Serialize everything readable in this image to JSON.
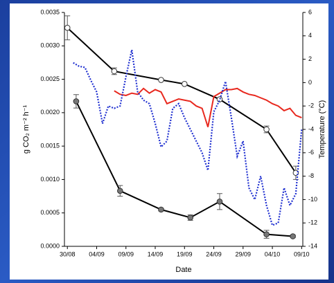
{
  "chart_data": {
    "type": "line",
    "xlabel": "Date",
    "ylabel": "g CO₂ m⁻² h⁻¹",
    "y2label": "Temperature (°C)",
    "xlim": [
      -0.5,
      40.2
    ],
    "xticks": [
      {
        "value": 0,
        "label": "30/08"
      },
      {
        "value": 5,
        "label": "04/09"
      },
      {
        "value": 10,
        "label": "09/09"
      },
      {
        "value": 15,
        "label": "14/09"
      },
      {
        "value": 20,
        "label": "19/09"
      },
      {
        "value": 25,
        "label": "24/09"
      },
      {
        "value": 30,
        "label": "29/09"
      },
      {
        "value": 35,
        "label": "04/10"
      },
      {
        "value": 40,
        "label": "09/10"
      }
    ],
    "ylim": [
      0,
      0.0035
    ],
    "yticks": [
      {
        "value": 0,
        "label": "0.0000"
      },
      0.0005,
      {
        "value": 0.001,
        "label": "0.0010"
      },
      0.0015,
      {
        "value": 0.002,
        "label": "0.0020"
      },
      0.0025,
      {
        "value": 0.003,
        "label": "0.0030"
      },
      0.0035
    ],
    "y2lim": [
      -14,
      6
    ],
    "y2ticks": [
      -14,
      -12,
      -10,
      -8,
      -6,
      -4,
      -2,
      0,
      2,
      4,
      6
    ],
    "series": [
      {
        "color": "#000000",
        "marker": "open",
        "style": "solid",
        "x": [
          0,
          8,
          16,
          20,
          26,
          34,
          39
        ],
        "values": [
          0.00327,
          0.00262,
          0.00249,
          0.00243,
          0.0022,
          0.00175,
          0.0011
        ],
        "errors": [
          0.00018,
          5e-05,
          0,
          0,
          0,
          5e-05,
          0.0001
        ]
      },
      {
        "color": "#000000",
        "marker": "filled",
        "style": "solid",
        "x": [
          1.5,
          9,
          16,
          21,
          26,
          34,
          38.5
        ],
        "values": [
          0.00217,
          0.00083,
          0.00055,
          0.00043,
          0.00067,
          0.00018,
          0.00015
        ],
        "errors": [
          0.0001,
          8e-05,
          2e-05,
          4e-05,
          0.00012,
          6e-05,
          2e-05
        ]
      },
      {
        "color": "#e8281e",
        "marker": "none",
        "style": "solid",
        "axis": "y2",
        "x": [
          8,
          9,
          10,
          11,
          12,
          13,
          14,
          15,
          16,
          17,
          18,
          19,
          20,
          21,
          22,
          23,
          24,
          25,
          26,
          27,
          28,
          29,
          30,
          31,
          32,
          33,
          34,
          35,
          36,
          37,
          38,
          39,
          40
        ],
        "values": [
          -0.7,
          -1.0,
          -1.1,
          -0.9,
          -1.0,
          -0.5,
          -0.9,
          -0.6,
          -0.8,
          -1.8,
          -1.6,
          -1.4,
          -1.5,
          -1.6,
          -2.0,
          -2.2,
          -3.8,
          -1.2,
          -0.9,
          -0.6,
          -0.6,
          -0.5,
          -0.8,
          -1.0,
          -1.1,
          -1.3,
          -1.5,
          -1.8,
          -2.0,
          -2.4,
          -2.2,
          -2.8,
          -3.0
        ]
      },
      {
        "color": "#1f2fd0",
        "marker": "none",
        "style": "dotted",
        "axis": "y2",
        "x": [
          1,
          2,
          3,
          4,
          5,
          6,
          7,
          8,
          9,
          10,
          11,
          12,
          13,
          14,
          15,
          16,
          17,
          18,
          19,
          20,
          21,
          22,
          23,
          24,
          25,
          26,
          27,
          28,
          29,
          30,
          31,
          32,
          33,
          34,
          35,
          36,
          37,
          38,
          39,
          40
        ],
        "values": [
          1.7,
          1.4,
          1.3,
          0.2,
          -0.8,
          -3.5,
          -2.0,
          -2.2,
          -2.0,
          0.5,
          2.8,
          -0.8,
          -1.5,
          -1.8,
          -3.5,
          -5.5,
          -5.0,
          -2.2,
          -1.8,
          -3.0,
          -4.0,
          -5.0,
          -6.0,
          -7.5,
          -2.5,
          -1.5,
          0.1,
          -3.0,
          -6.3,
          -5.0,
          -9.0,
          -10.0,
          -8.0,
          -10.5,
          -12.2,
          -12.0,
          -9.0,
          -10.5,
          -9.5,
          -4.0
        ]
      }
    ]
  }
}
